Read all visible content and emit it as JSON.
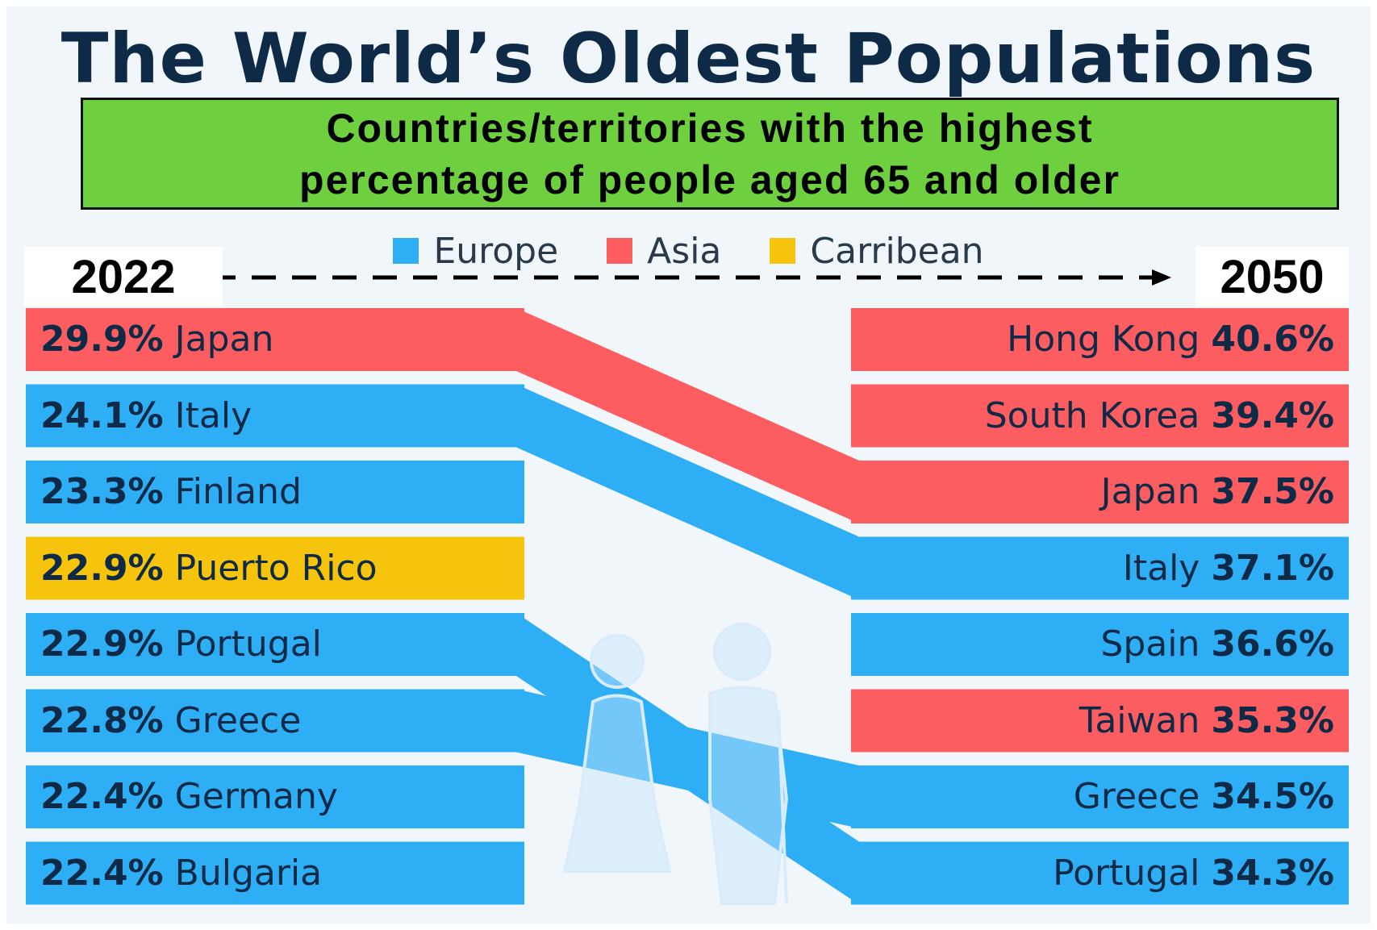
{
  "title": "The World’s Oldest Populations",
  "subtitle_line1": "Countries/territories with the highest",
  "subtitle_line2": "percentage of people aged 65 and older",
  "legend": [
    {
      "label": "Europe",
      "color": "#2eaef5"
    },
    {
      "label": "Asia",
      "color": "#fc5d60"
    },
    {
      "label": "Carribean",
      "color": "#f6c40c"
    }
  ],
  "year_start": "2022",
  "year_end": "2050",
  "chart_data": {
    "type": "bar",
    "title": "The World’s Oldest Populations",
    "subtitle": "Countries/territories with the highest percentage of people aged 65 and older",
    "series": [
      {
        "name": "2022",
        "items": [
          {
            "country": "Japan",
            "value": 29.9,
            "value_label": "29.9%",
            "region": "Asia"
          },
          {
            "country": "Italy",
            "value": 24.1,
            "value_label": "24.1%",
            "region": "Europe"
          },
          {
            "country": "Finland",
            "value": 23.3,
            "value_label": "23.3%",
            "region": "Europe"
          },
          {
            "country": "Puerto Rico",
            "value": 22.9,
            "value_label": "22.9%",
            "region": "Carribean"
          },
          {
            "country": "Portugal",
            "value": 22.9,
            "value_label": "22.9%",
            "region": "Europe"
          },
          {
            "country": "Greece",
            "value": 22.8,
            "value_label": "22.8%",
            "region": "Europe"
          },
          {
            "country": "Germany",
            "value": 22.4,
            "value_label": "22.4%",
            "region": "Europe"
          },
          {
            "country": "Bulgaria",
            "value": 22.4,
            "value_label": "22.4%",
            "region": "Europe"
          }
        ]
      },
      {
        "name": "2050",
        "items": [
          {
            "country": "Hong Kong",
            "value": 40.6,
            "value_label": "40.6%",
            "region": "Asia"
          },
          {
            "country": "South Korea",
            "value": 39.4,
            "value_label": "39.4%",
            "region": "Asia"
          },
          {
            "country": "Japan",
            "value": 37.5,
            "value_label": "37.5%",
            "region": "Asia"
          },
          {
            "country": "Italy",
            "value": 37.1,
            "value_label": "37.1%",
            "region": "Europe"
          },
          {
            "country": "Spain",
            "value": 36.6,
            "value_label": "36.6%",
            "region": "Europe"
          },
          {
            "country": "Taiwan",
            "value": 35.3,
            "value_label": "35.3%",
            "region": "Asia"
          },
          {
            "country": "Greece",
            "value": 34.5,
            "value_label": "34.5%",
            "region": "Europe"
          },
          {
            "country": "Portugal",
            "value": 34.3,
            "value_label": "34.3%",
            "region": "Europe"
          }
        ]
      }
    ],
    "links": [
      {
        "country": "Japan",
        "from_rank": 1,
        "to_rank": 3
      },
      {
        "country": "Italy",
        "from_rank": 2,
        "to_rank": 4
      },
      {
        "country": "Portugal",
        "from_rank": 5,
        "to_rank": 8
      },
      {
        "country": "Greece",
        "from_rank": 6,
        "to_rank": 7
      }
    ]
  }
}
